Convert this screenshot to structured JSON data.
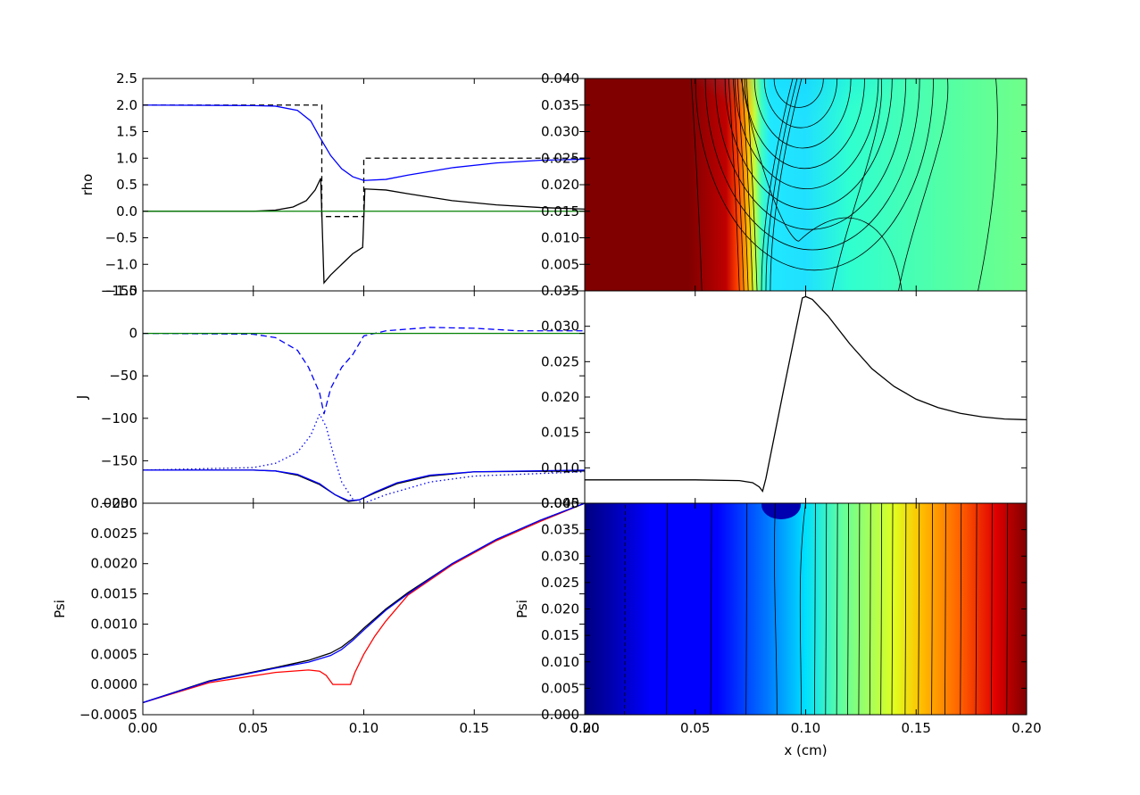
{
  "chart_data": [
    {
      "id": "rho",
      "type": "line",
      "ylabel": "rho",
      "xlim": [
        0,
        0.2
      ],
      "ylim": [
        -1.5,
        2.5
      ],
      "xticks": [
        0,
        0.05,
        0.1,
        0.15,
        0.2
      ],
      "yticks": [
        "2.5",
        "2.0",
        "1.5",
        "1.0",
        "0.5",
        "0.0",
        "−0.5",
        "−1.0",
        "−1.5"
      ],
      "series": [
        {
          "color": "#000000",
          "dash": "6,4",
          "points": [
            [
              0,
              2.0
            ],
            [
              0.081,
              2.0
            ],
            [
              0.081,
              -0.1
            ],
            [
              0.1,
              -0.1
            ],
            [
              0.1,
              1.0
            ],
            [
              0.2,
              1.0
            ]
          ]
        },
        {
          "color": "#0000ff",
          "dash": "",
          "points": [
            [
              0,
              2.0
            ],
            [
              0.05,
              1.99
            ],
            [
              0.06,
              1.98
            ],
            [
              0.07,
              1.9
            ],
            [
              0.076,
              1.7
            ],
            [
              0.08,
              1.4
            ],
            [
              0.085,
              1.05
            ],
            [
              0.09,
              0.8
            ],
            [
              0.095,
              0.65
            ],
            [
              0.1,
              0.58
            ],
            [
              0.11,
              0.6
            ],
            [
              0.12,
              0.68
            ],
            [
              0.14,
              0.82
            ],
            [
              0.16,
              0.91
            ],
            [
              0.18,
              0.96
            ],
            [
              0.2,
              0.98
            ]
          ]
        },
        {
          "color": "#000000",
          "dash": "",
          "points": [
            [
              0,
              0.0
            ],
            [
              0.05,
              0.0
            ],
            [
              0.06,
              0.02
            ],
            [
              0.068,
              0.08
            ],
            [
              0.074,
              0.2
            ],
            [
              0.078,
              0.4
            ],
            [
              0.0805,
              0.62
            ],
            [
              0.082,
              -1.35
            ],
            [
              0.085,
              -1.2
            ],
            [
              0.09,
              -1.0
            ],
            [
              0.095,
              -0.8
            ],
            [
              0.0995,
              -0.68
            ],
            [
              0.1005,
              0.42
            ],
            [
              0.11,
              0.4
            ],
            [
              0.12,
              0.33
            ],
            [
              0.14,
              0.2
            ],
            [
              0.16,
              0.12
            ],
            [
              0.18,
              0.07
            ],
            [
              0.2,
              0.04
            ]
          ]
        },
        {
          "color": "#008000",
          "dash": "",
          "points": [
            [
              0,
              0.0
            ],
            [
              0.2,
              0.0
            ]
          ]
        }
      ]
    },
    {
      "id": "J",
      "type": "line",
      "ylabel": "J",
      "xlim": [
        0,
        0.2
      ],
      "ylim": [
        -200,
        50
      ],
      "xticks": [
        0,
        0.05,
        0.1,
        0.15,
        0.2
      ],
      "yticks": [
        "−150",
        "−100",
        "−50",
        "0"
      ],
      "ytickvals": [
        -150,
        -100,
        -50,
        0
      ],
      "topclip": "−150",
      "bottomclip": "−200",
      "series": [
        {
          "color": "#0000ff",
          "dash": "7,4",
          "points": [
            [
              0,
              0
            ],
            [
              0.05,
              -1
            ],
            [
              0.06,
              -5
            ],
            [
              0.07,
              -20
            ],
            [
              0.075,
              -40
            ],
            [
              0.08,
              -70
            ],
            [
              0.082,
              -95
            ],
            [
              0.085,
              -65
            ],
            [
              0.09,
              -40
            ],
            [
              0.095,
              -25
            ],
            [
              0.1,
              -3
            ],
            [
              0.11,
              3
            ],
            [
              0.13,
              7
            ],
            [
              0.15,
              6
            ],
            [
              0.17,
              3
            ],
            [
              0.2,
              3
            ]
          ]
        },
        {
          "color": "#0000ff",
          "dash": "1.5,3",
          "points": [
            [
              0,
              -161
            ],
            [
              0.05,
              -158
            ],
            [
              0.06,
              -153
            ],
            [
              0.07,
              -140
            ],
            [
              0.076,
              -120
            ],
            [
              0.08,
              -95
            ],
            [
              0.083,
              -110
            ],
            [
              0.086,
              -140
            ],
            [
              0.09,
              -175
            ],
            [
              0.095,
              -195
            ],
            [
              0.1,
              -200
            ],
            [
              0.11,
              -190
            ],
            [
              0.13,
              -175
            ],
            [
              0.15,
              -168
            ],
            [
              0.2,
              -163
            ]
          ]
        },
        {
          "color": "#000000",
          "dash": "",
          "points": [
            [
              0,
              -161
            ],
            [
              0.05,
              -161
            ],
            [
              0.06,
              -162
            ],
            [
              0.07,
              -167
            ],
            [
              0.08,
              -178
            ],
            [
              0.087,
              -190
            ],
            [
              0.093,
              -198
            ],
            [
              0.098,
              -196
            ],
            [
              0.105,
              -188
            ],
            [
              0.115,
              -177
            ],
            [
              0.13,
              -168
            ],
            [
              0.15,
              -163
            ],
            [
              0.2,
              -162
            ]
          ]
        },
        {
          "color": "#0000ff",
          "dash": "",
          "points": [
            [
              0,
              -161
            ],
            [
              0.05,
              -161
            ],
            [
              0.06,
              -162
            ],
            [
              0.07,
              -166
            ],
            [
              0.08,
              -177
            ],
            [
              0.087,
              -190
            ],
            [
              0.093,
              -197
            ],
            [
              0.098,
              -196
            ],
            [
              0.105,
              -187
            ],
            [
              0.115,
              -176
            ],
            [
              0.13,
              -167
            ],
            [
              0.15,
              -163
            ],
            [
              0.2,
              -161
            ]
          ]
        },
        {
          "color": "#008000",
          "dash": "",
          "points": [
            [
              0,
              0
            ],
            [
              0.2,
              0
            ]
          ]
        }
      ]
    },
    {
      "id": "psi",
      "type": "line",
      "ylabel": "Psi",
      "xlabel": "",
      "xlim": [
        0,
        0.2
      ],
      "ylim": [
        -0.0005,
        0.003
      ],
      "xticks": [
        "0.00",
        "0.05",
        "0.10",
        "0.15",
        "0.20"
      ],
      "xtickvals": [
        0,
        0.05,
        0.1,
        0.15,
        0.2
      ],
      "yticks": [
        "0.0025",
        "0.0020",
        "0.0015",
        "0.0010",
        "0.0005",
        "0.0000",
        "−0.0005"
      ],
      "ytickvals": [
        0.0025,
        0.002,
        0.0015,
        0.001,
        0.0005,
        0.0,
        -0.0005
      ],
      "topclip": "0.0030",
      "series": [
        {
          "color": "#ff0000",
          "dash": "",
          "points": [
            [
              0,
              -0.0003
            ],
            [
              0.03,
              3e-05
            ],
            [
              0.06,
              0.0002
            ],
            [
              0.075,
              0.00024
            ],
            [
              0.08,
              0.00022
            ],
            [
              0.083,
              0.00015
            ],
            [
              0.086,
              0.0
            ],
            [
              0.094,
              0.0
            ],
            [
              0.096,
              0.0002
            ],
            [
              0.1,
              0.0005
            ],
            [
              0.105,
              0.0008
            ],
            [
              0.11,
              0.00105
            ],
            [
              0.12,
              0.00148
            ],
            [
              0.14,
              0.00198
            ],
            [
              0.16,
              0.00238
            ],
            [
              0.18,
              0.0027
            ],
            [
              0.2,
              0.003
            ]
          ]
        },
        {
          "color": "#000000",
          "dash": "",
          "points": [
            [
              0,
              -0.0003
            ],
            [
              0.03,
              6e-05
            ],
            [
              0.06,
              0.00028
            ],
            [
              0.075,
              0.0004
            ],
            [
              0.085,
              0.00052
            ],
            [
              0.09,
              0.00062
            ],
            [
              0.095,
              0.00076
            ],
            [
              0.1,
              0.00093
            ],
            [
              0.11,
              0.00125
            ],
            [
              0.12,
              0.00152
            ],
            [
              0.14,
              0.002
            ],
            [
              0.16,
              0.0024
            ],
            [
              0.18,
              0.00272
            ],
            [
              0.2,
              0.003
            ]
          ]
        },
        {
          "color": "#0000ff",
          "dash": "",
          "points": [
            [
              0,
              -0.0003
            ],
            [
              0.03,
              5e-05
            ],
            [
              0.06,
              0.00027
            ],
            [
              0.075,
              0.00037
            ],
            [
              0.085,
              0.00048
            ],
            [
              0.09,
              0.00058
            ],
            [
              0.095,
              0.00073
            ],
            [
              0.1,
              0.0009
            ],
            [
              0.11,
              0.00123
            ],
            [
              0.12,
              0.0015
            ],
            [
              0.14,
              0.002
            ],
            [
              0.16,
              0.0024
            ],
            [
              0.18,
              0.00272
            ],
            [
              0.2,
              0.003
            ]
          ]
        }
      ]
    },
    {
      "id": "contour-top",
      "type": "heatmap",
      "colormap": "jet",
      "xlim": [
        0,
        0.2
      ],
      "ylim": [
        0,
        0.04
      ],
      "yticks": [
        "0.040",
        "0.035",
        "0.030",
        "0.025",
        "0.020",
        "0.015",
        "0.010",
        "0.005"
      ],
      "ytickvals": [
        0.04,
        0.035,
        0.03,
        0.025,
        0.02,
        0.015,
        0.01,
        0.005
      ],
      "bottomclip": "0.035",
      "contour_x_at_bottom": [
        0.053,
        0.07,
        0.072,
        0.074,
        0.076,
        0.078,
        0.08,
        0.082,
        0.084,
        0.112,
        0.142,
        0.178
      ]
    },
    {
      "id": "line-mid",
      "type": "line",
      "xlim": [
        0,
        0.2
      ],
      "ylim": [
        0.005,
        0.035
      ],
      "yticks": [
        "0.030",
        "0.025",
        "0.020",
        "0.015",
        "0.010"
      ],
      "ytickvals": [
        0.03,
        0.025,
        0.02,
        0.015,
        0.01
      ],
      "bottomclip": "0.005",
      "series": [
        {
          "color": "#000000",
          "dash": "",
          "points": [
            [
              0,
              0.0083
            ],
            [
              0.05,
              0.0083
            ],
            [
              0.07,
              0.0082
            ],
            [
              0.076,
              0.0079
            ],
            [
              0.079,
              0.0073
            ],
            [
              0.0805,
              0.0067
            ],
            [
              0.082,
              0.0085
            ],
            [
              0.09,
              0.021
            ],
            [
              0.0985,
              0.034
            ],
            [
              0.1,
              0.0342
            ],
            [
              0.103,
              0.0338
            ],
            [
              0.11,
              0.0315
            ],
            [
              0.12,
              0.0275
            ],
            [
              0.13,
              0.024
            ],
            [
              0.14,
              0.0215
            ],
            [
              0.15,
              0.0197
            ],
            [
              0.16,
              0.0185
            ],
            [
              0.17,
              0.0177
            ],
            [
              0.18,
              0.0172
            ],
            [
              0.19,
              0.0169
            ],
            [
              0.2,
              0.0168
            ]
          ]
        }
      ]
    },
    {
      "id": "contour-bottom",
      "type": "heatmap",
      "colormap": "jet",
      "ylabel": "Psi",
      "xlabel": "x (cm)",
      "xlim": [
        0,
        0.2
      ],
      "ylim": [
        0,
        0.04
      ],
      "xticks": [
        "0.00",
        "0.05",
        "0.10",
        "0.15",
        "0.20"
      ],
      "xtickvals": [
        0,
        0.05,
        0.1,
        0.15,
        0.2
      ],
      "yticks": [
        "0.035",
        "0.030",
        "0.025",
        "0.020",
        "0.015",
        "0.010",
        "0.005",
        "0.000"
      ],
      "ytickvals": [
        0.035,
        0.03,
        0.025,
        0.02,
        0.015,
        0.01,
        0.005,
        0.0
      ],
      "topclip": "0.040",
      "contour_x": [
        0.018,
        0.037,
        0.057,
        0.073,
        0.087,
        0.098,
        0.104,
        0.109,
        0.114,
        0.119,
        0.124,
        0.129,
        0.134,
        0.139,
        0.145,
        0.151,
        0.157,
        0.163,
        0.17,
        0.177,
        0.184,
        0.191
      ]
    }
  ]
}
